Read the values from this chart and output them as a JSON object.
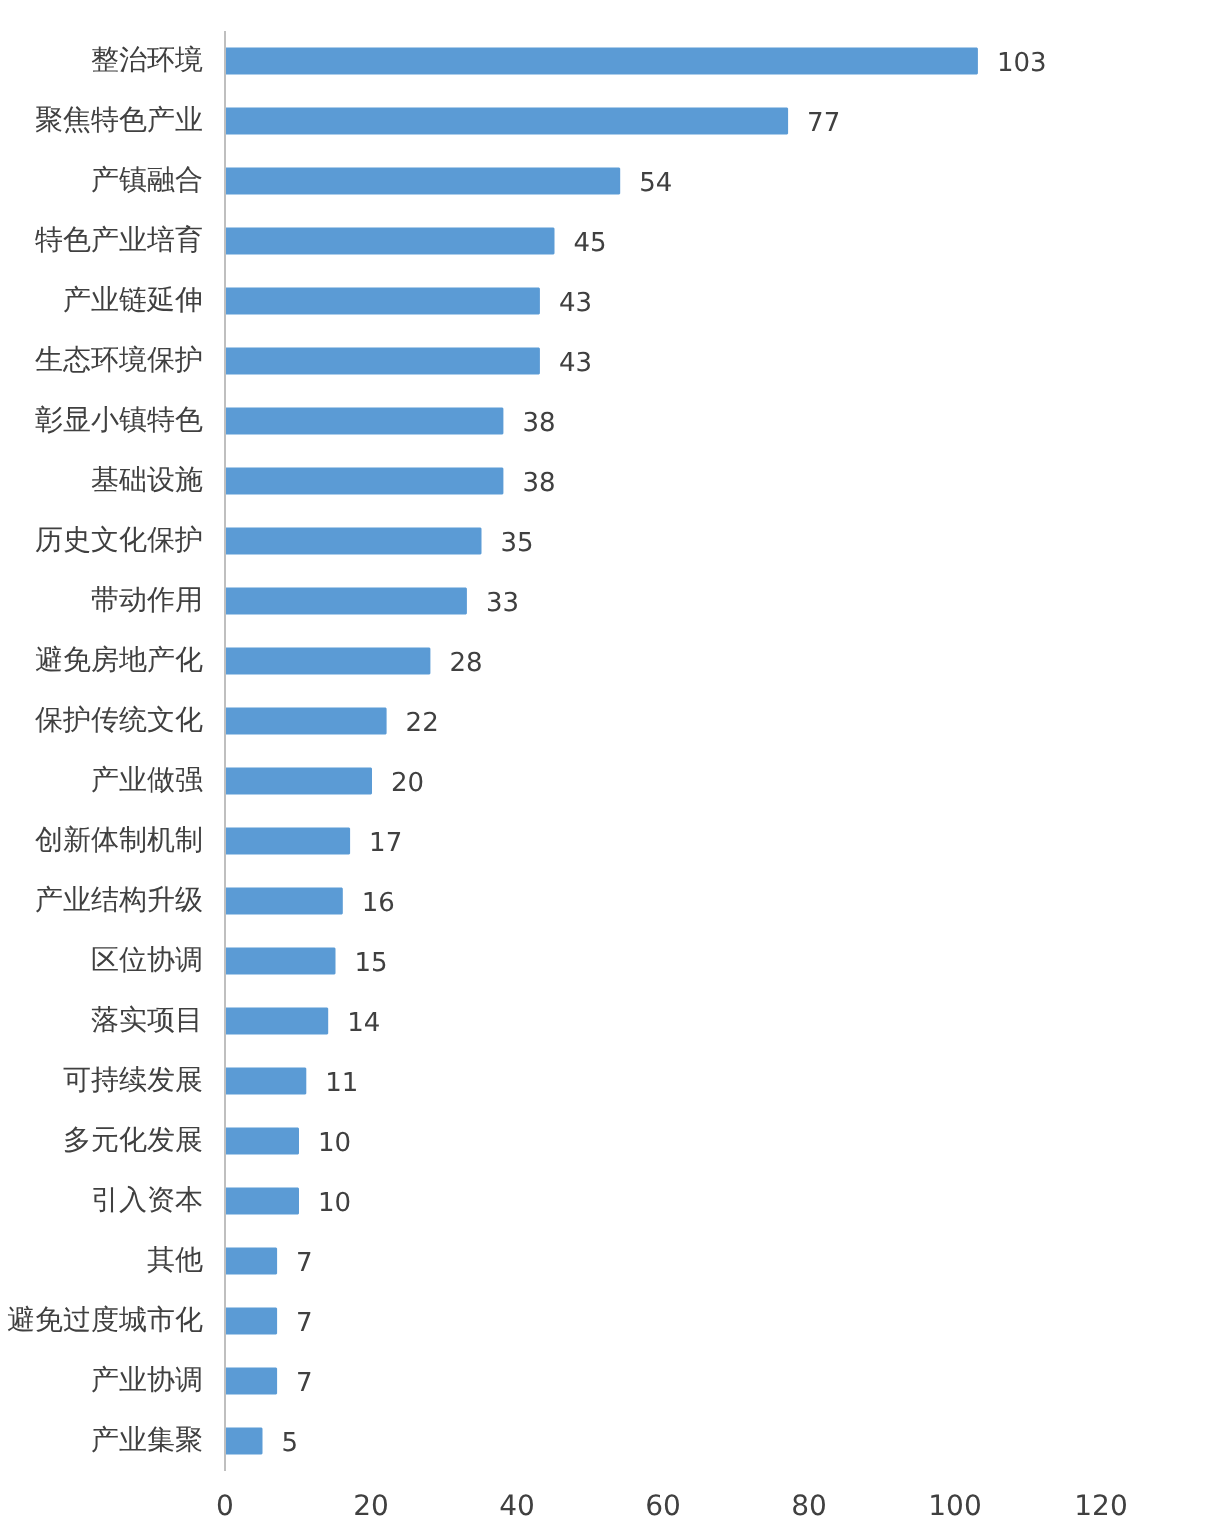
{
  "chart_data": {
    "type": "bar",
    "orientation": "horizontal",
    "categories": [
      "整治环境",
      "聚焦特色产业",
      "产镇融合",
      "特色产业培育",
      "产业链延伸",
      "生态环境保护",
      "彰显小镇特色",
      "基础设施",
      "历史文化保护",
      "带动作用",
      "避免房地产化",
      "保护传统文化",
      "产业做强",
      "创新体制机制",
      "产业结构升级",
      "区位协调",
      "落实项目",
      "可持续发展",
      "多元化发展",
      "引入资本",
      "其他",
      "避免过度城市化",
      "产业协调",
      "产业集聚"
    ],
    "values": [
      103,
      77,
      54,
      45,
      43,
      43,
      38,
      38,
      35,
      33,
      28,
      22,
      20,
      17,
      16,
      15,
      14,
      11,
      10,
      10,
      7,
      7,
      7,
      5
    ],
    "color": "#5b9bd5",
    "xlim": [
      0,
      120
    ],
    "xticks": [
      0,
      20,
      40,
      60,
      80,
      100,
      120
    ],
    "grid": false,
    "data_labels": true
  }
}
